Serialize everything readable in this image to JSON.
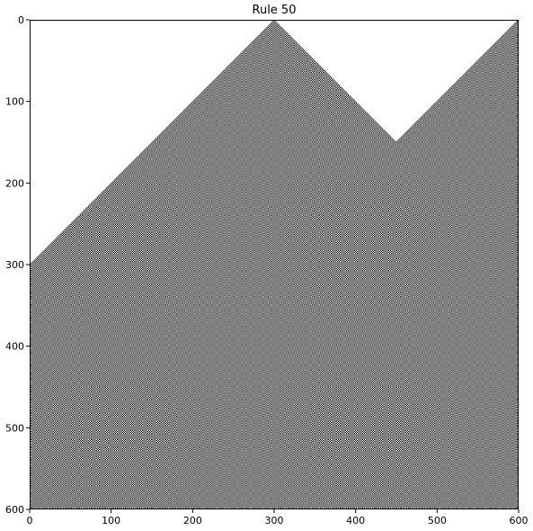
{
  "chart_data": {
    "type": "heatmap",
    "title": "Rule 50",
    "rule": 50,
    "initial_condition": "two single active cells on an otherwise empty row, at columns 300 and 600",
    "palette": {
      "active": "#000000",
      "inactive": "#ffffff",
      "frame": "#000000"
    },
    "xlim": [
      0,
      600
    ],
    "ylim": [
      600,
      0
    ],
    "x_ticks": [
      0,
      100,
      200,
      300,
      400,
      500,
      600
    ],
    "y_ticks": [
      0,
      100,
      200,
      300,
      400,
      500,
      600
    ],
    "x_tick_labels": [
      "0",
      "100",
      "200",
      "300",
      "400",
      "500",
      "600"
    ],
    "y_tick_labels": [
      "0",
      "100",
      "200",
      "300",
      "400",
      "500",
      "600"
    ],
    "xlabel": "",
    "ylabel": "",
    "grid": false,
    "legend": "none"
  }
}
